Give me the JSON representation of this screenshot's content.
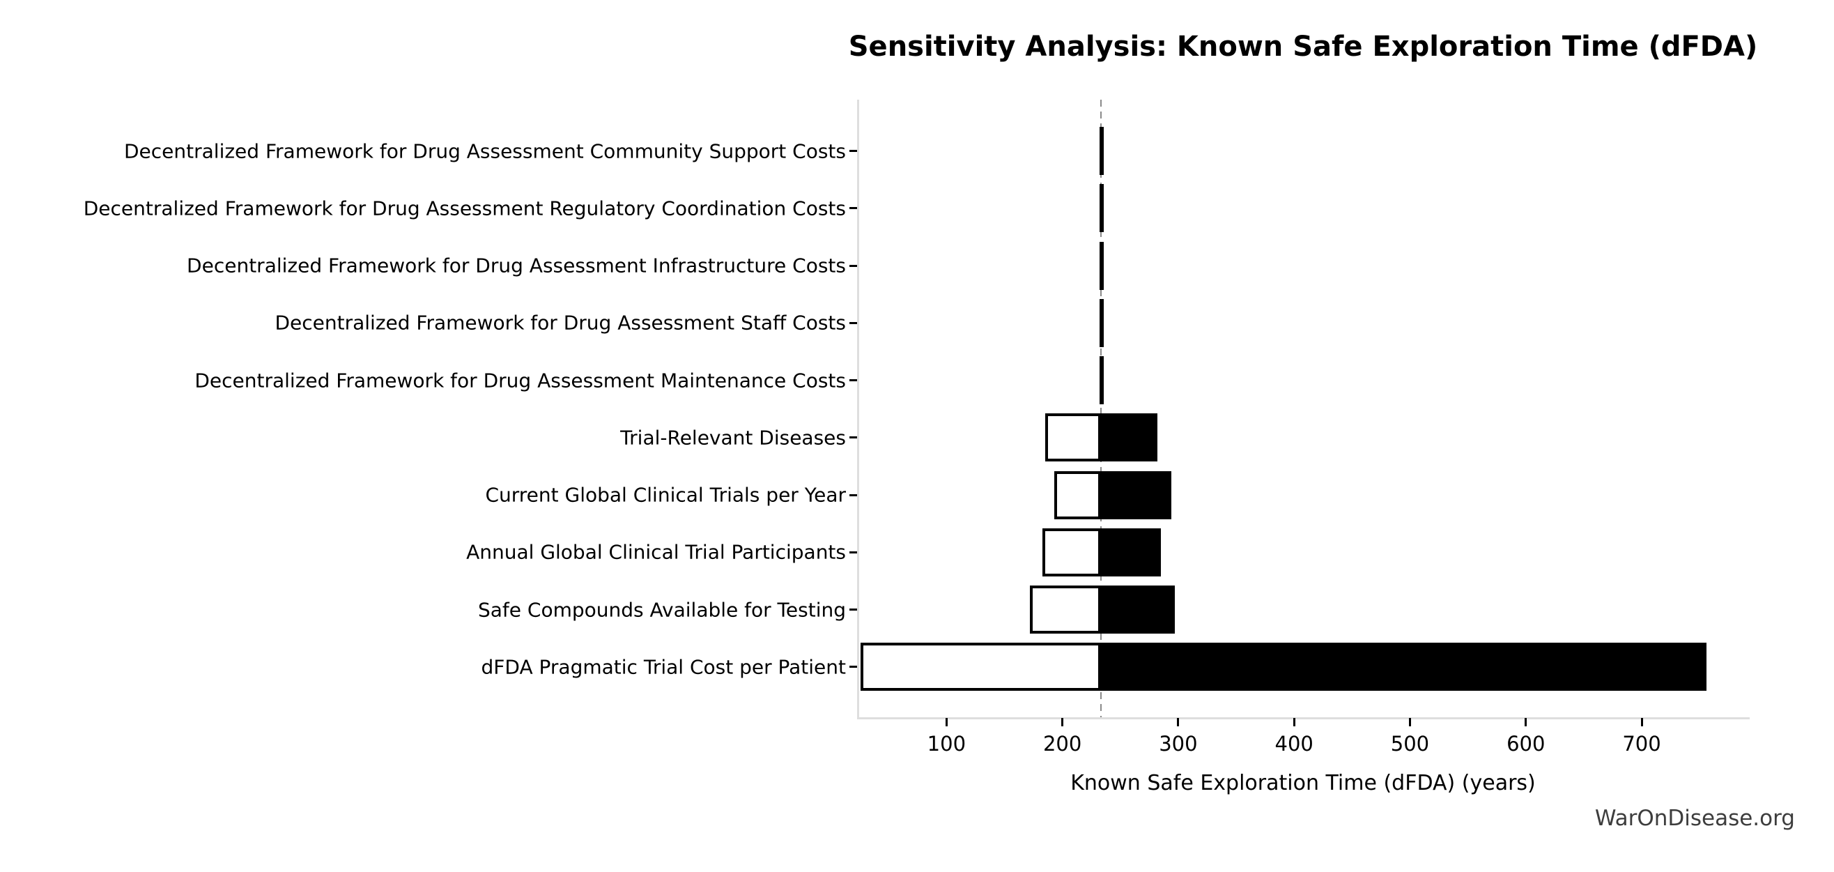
{
  "title": "Sensitivity Analysis: Known Safe Exploration Time (dFDA)",
  "watermark": "WarOnDisease.org",
  "chart_data": {
    "type": "bar",
    "subtype": "tornado",
    "orientation": "horizontal",
    "title": "Sensitivity Analysis: Known Safe Exploration Time (dFDA)",
    "xlabel": "Known Safe Exploration Time (dFDA) (years)",
    "ylabel": "",
    "grid": false,
    "legend": "none",
    "baseline": 233,
    "xlim": [
      24,
      792
    ],
    "x_ticks": [
      100,
      200,
      300,
      400,
      500,
      600,
      700
    ],
    "colors": {
      "low_side_fill": "#ffffff",
      "high_side_fill": "#000000",
      "bar_edge": "#000000",
      "baseline_line": "#8a8a8a",
      "spine": "#dedede",
      "text": "#000000",
      "watermark_text": "#3d3d3d"
    },
    "rows": [
      {
        "label": "Decentralized Framework for Drug Assessment Community Support Costs",
        "low": 232,
        "high": 236
      },
      {
        "label": "Decentralized Framework for Drug Assessment Regulatory Coordination Costs",
        "low": 232,
        "high": 236
      },
      {
        "label": "Decentralized Framework for Drug Assessment Infrastructure Costs",
        "low": 232,
        "high": 236
      },
      {
        "label": "Decentralized Framework for Drug Assessment Staff Costs",
        "low": 232,
        "high": 236
      },
      {
        "label": "Decentralized Framework for Drug Assessment Maintenance Costs",
        "low": 232,
        "high": 236
      },
      {
        "label": "Trial-Relevant Diseases",
        "low": 185,
        "high": 282
      },
      {
        "label": "Current Global Clinical Trials per Year",
        "low": 193,
        "high": 294
      },
      {
        "label": "Annual Global Clinical Trial Participants",
        "low": 183,
        "high": 285
      },
      {
        "label": "Safe Compounds Available for Testing",
        "low": 172,
        "high": 297
      },
      {
        "label": "dFDA Pragmatic Trial Cost per Patient",
        "low": 26,
        "high": 756
      }
    ]
  }
}
